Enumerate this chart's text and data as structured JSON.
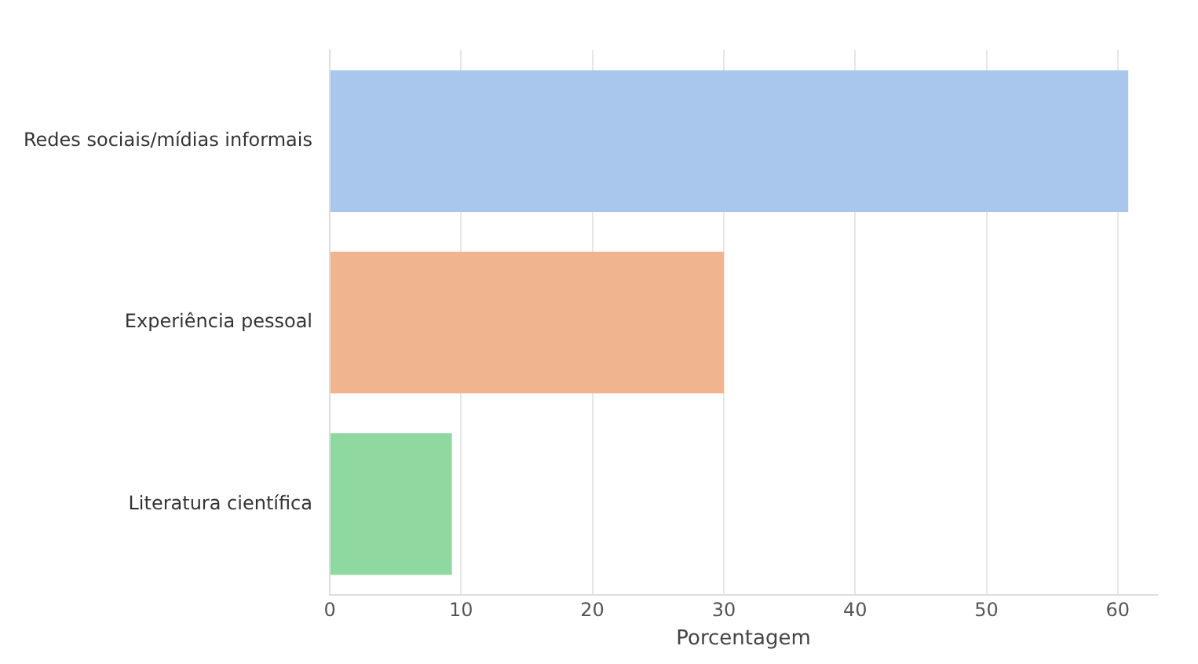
{
  "chart_data": {
    "type": "bar",
    "orientation": "horizontal",
    "categories": [
      "Redes sociais/mídias informais",
      "Experiência pessoal",
      "Literatura científica"
    ],
    "values": [
      60.8,
      30.0,
      9.3
    ],
    "colors": [
      "#a9c6ec",
      "#f0b48e",
      "#8fd9a0"
    ],
    "xlabel": "Porcentagem",
    "xlim": [
      0,
      63
    ],
    "xticks": [
      0,
      10,
      20,
      30,
      40,
      50,
      60
    ],
    "grid": "x",
    "legend": false
  }
}
